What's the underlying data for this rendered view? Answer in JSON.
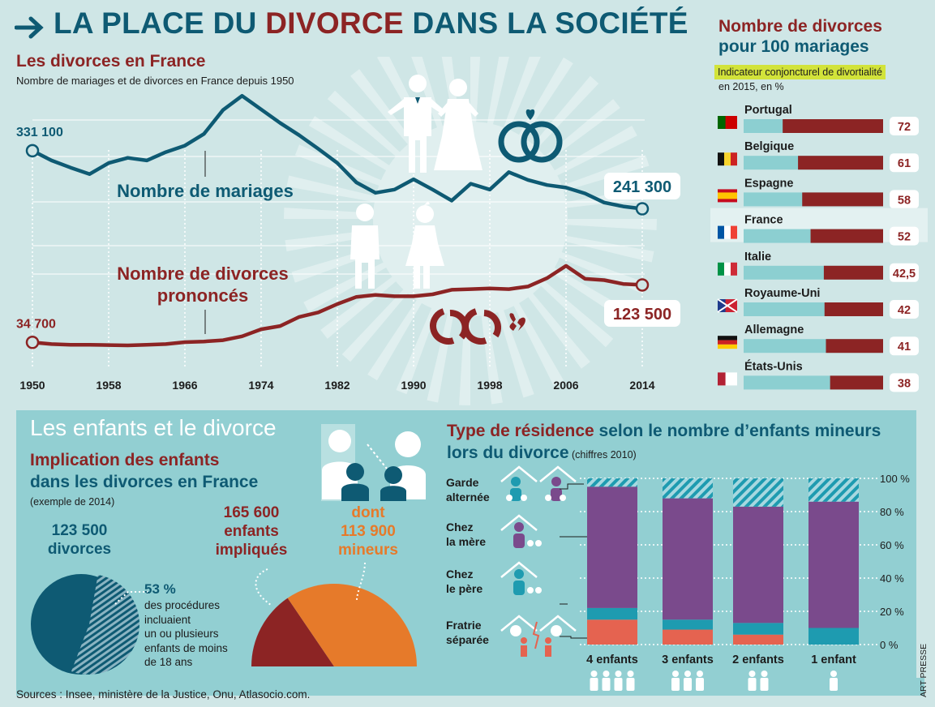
{
  "title": {
    "pre": "LA PLACE DU ",
    "highlight": "DIVORCE",
    "post": " DANS LA SOCIÉTÉ"
  },
  "france": {
    "title": "Les divorces en France",
    "subtitle": "Nombre de mariages et de divorces en France depuis 1950"
  },
  "rates": {
    "title1": "Nombre de divorces",
    "title2": "pour 100 mariages",
    "indicator": "Indicateur conjoncturel de divortialité",
    "subtitle": "en 2015, en %"
  },
  "children": {
    "title": "Les enfants et le divorce",
    "impl1": "Implication des enfants",
    "impl2": "dans les divorces en France",
    "example": "(exemple de 2014)",
    "div_count": "123 500",
    "div_word": "divorces",
    "pct": "53 %",
    "pct_text": [
      "des procédures",
      "incluaient",
      "un ou plusieurs",
      "enfants de moins",
      "de 18 ans"
    ],
    "kids_count": "165 600",
    "kids_l2": "enfants",
    "kids_l3": "impliqués",
    "dont": "dont",
    "minors_count": "113 900",
    "minors_word": "mineurs"
  },
  "residence": {
    "title_hl": "Type de résidence",
    "title_rest": " selon le nombre d’enfants mineurs",
    "title_l2": "lors du divorce",
    "title_small": " (chiffres 2010)",
    "categories": [
      {
        "l1": "Garde",
        "l2": "alternée"
      },
      {
        "l1": "Chez",
        "l2": "la mère"
      },
      {
        "l1": "Chez",
        "l2": "le père"
      },
      {
        "l1": "Fratrie",
        "l2": "séparée"
      }
    ]
  },
  "sources": "Sources : Insee, ministère de la Justice, Onu, Atlasocio.com.",
  "credit": "ART PRESSE",
  "colors": {
    "teal": "#0e5a73",
    "red": "#8c2424",
    "orange": "#e67a2a",
    "purple": "#7a4a8c",
    "cyan": "#1e9bb0",
    "salmon": "#e56350",
    "lightbar": "#8ccfd1"
  },
  "chart_data": [
    {
      "type": "line",
      "x": [
        1950,
        1952,
        1954,
        1956,
        1958,
        1960,
        1962,
        1964,
        1966,
        1968,
        1970,
        1972,
        1974,
        1976,
        1978,
        1980,
        1982,
        1984,
        1986,
        1988,
        1990,
        1992,
        1994,
        1996,
        1998,
        2000,
        2002,
        2004,
        2006,
        2008,
        2010,
        2012,
        2014
      ],
      "xticks": [
        1950,
        1958,
        1966,
        1974,
        1982,
        1990,
        1998,
        2006,
        2014
      ],
      "series": [
        {
          "name": "Nombre de mariages",
          "start_label": "331 100",
          "end_label": "241 300",
          "values": [
            331100,
            316000,
            305000,
            295000,
            312000,
            320000,
            316000,
            329000,
            339000,
            357000,
            394000,
            416000,
            395000,
            374000,
            355000,
            334000,
            312000,
            282000,
            266000,
            271000,
            287000,
            271000,
            254000,
            280000,
            271000,
            298000,
            286000,
            278000,
            274000,
            265000,
            251000,
            245000,
            241300
          ]
        },
        {
          "name": "Nombre de divorces\nprononcés",
          "start_label": "34 700",
          "end_label": "123 500",
          "values": [
            34700,
            32000,
            31000,
            31000,
            30500,
            30000,
            31000,
            32000,
            35000,
            36000,
            38000,
            44000,
            55000,
            60000,
            74000,
            81000,
            94000,
            105000,
            108000,
            106000,
            106000,
            109000,
            116000,
            117000,
            118000,
            117000,
            121000,
            134000,
            153000,
            133000,
            131000,
            125000,
            123500
          ]
        }
      ]
    },
    {
      "type": "bar",
      "title": "Nombre de divorces pour 100 mariages",
      "categories": [
        "Portugal",
        "Belgique",
        "Espagne",
        "France",
        "Italie",
        "Royaume-Uni",
        "Allemagne",
        "États-Unis"
      ],
      "values": [
        72,
        61,
        58,
        52,
        42.5,
        42,
        41,
        38
      ],
      "labels": [
        "72",
        "61",
        "58",
        "52",
        "42,5",
        "42",
        "41",
        "38"
      ]
    },
    {
      "type": "pie",
      "values": [
        47,
        53
      ],
      "labels": [
        "",
        "53 %"
      ]
    },
    {
      "type": "pie",
      "values": [
        31,
        69
      ],
      "labels": [
        "165 600",
        "113 900"
      ]
    },
    {
      "type": "bar",
      "stacked": true,
      "categories": [
        "4 enfants",
        "3 enfants",
        "2 enfants",
        "1 enfant"
      ],
      "yticks": [
        "100 %",
        "80 %",
        "60 %",
        "40 %",
        "20 %",
        "0 %"
      ],
      "series": [
        {
          "name": "Fratrie séparée",
          "values": [
            15,
            9,
            6,
            0
          ]
        },
        {
          "name": "Chez le père",
          "values": [
            7,
            6,
            7,
            10
          ]
        },
        {
          "name": "Chez la mère",
          "values": [
            73,
            73,
            70,
            76
          ]
        },
        {
          "name": "Garde alternée",
          "values": [
            5,
            12,
            17,
            14
          ]
        }
      ]
    }
  ]
}
